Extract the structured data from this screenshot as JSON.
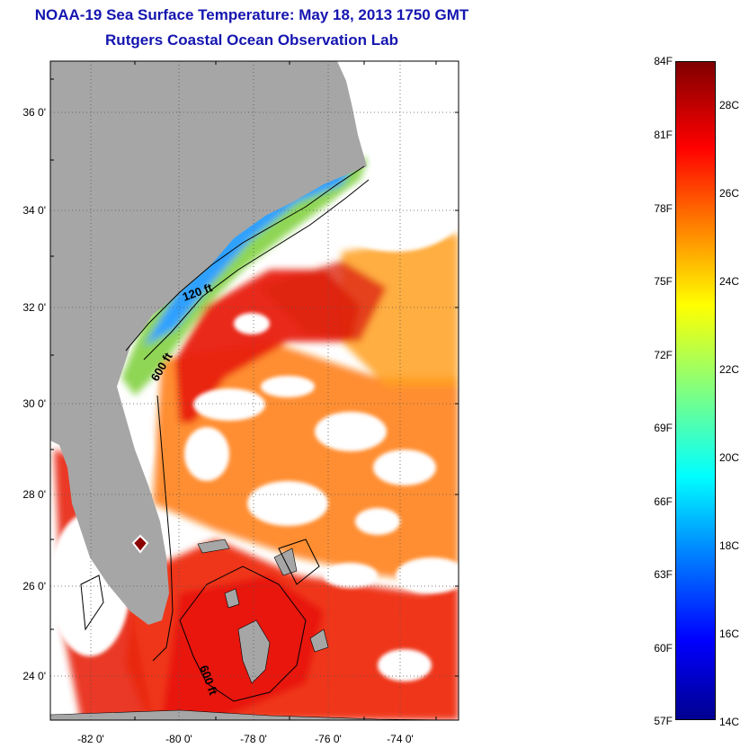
{
  "title_line1": "NOAA-19 Sea Surface Temperature:  May 18, 2013 1750 GMT",
  "title_line2": "Rutgers Coastal Ocean Observation Lab",
  "map": {
    "lat_ticks": [
      "36 0'",
      "34 0'",
      "32 0'",
      "30 0'",
      "28 0'",
      "26 0'",
      "24 0'"
    ],
    "lon_ticks": [
      "-82 0'",
      "-80 0'",
      "-78 0'",
      "-76 0'",
      "-74 0'"
    ],
    "contour_labels": [
      "120 ft",
      "600 ft",
      "600 ft"
    ],
    "land_color": "#a6a6a6",
    "cloud_color": "#ffffff"
  },
  "colorbar": {
    "fahrenheit_labels": [
      "84F",
      "81F",
      "78F",
      "75F",
      "72F",
      "69F",
      "66F",
      "63F",
      "60F",
      "57F"
    ],
    "celsius_labels": [
      "28C",
      "26C",
      "24C",
      "22C",
      "20C",
      "18C",
      "16C",
      "14C"
    ],
    "colors": [
      "#00008f",
      "#0000ff",
      "#0080ff",
      "#00ffff",
      "#80ff80",
      "#ffff00",
      "#ff8000",
      "#ff0000",
      "#800000"
    ]
  }
}
